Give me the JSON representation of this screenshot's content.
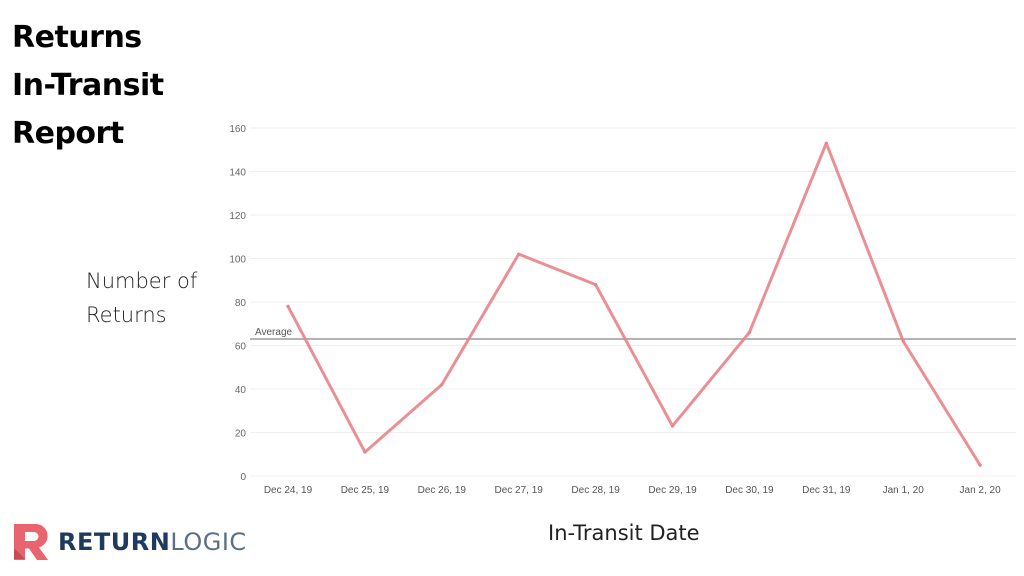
{
  "title_lines": [
    "Returns",
    "In-Transit",
    "Report"
  ],
  "brand": {
    "part1": "RETURN",
    "part2": "LOGIC",
    "colors": {
      "dark": "#1f3a5c",
      "accent": "#e8646e",
      "light": "#5d6f87"
    }
  },
  "chart_data": {
    "type": "line",
    "title": "",
    "xlabel": "In-Transit Date",
    "ylabel_lines": [
      "Number of",
      "Returns"
    ],
    "categories": [
      "Dec 24, 19",
      "Dec 25, 19",
      "Dec 26, 19",
      "Dec 27, 19",
      "Dec 28, 19",
      "Dec 29, 19",
      "Dec 30, 19",
      "Dec 31, 19",
      "Jan 1, 20",
      "Jan 2, 20"
    ],
    "values": [
      78,
      11,
      42,
      102,
      88,
      23,
      66,
      153,
      62,
      5
    ],
    "ylim": [
      0,
      160
    ],
    "yticks": [
      0,
      20,
      40,
      60,
      80,
      100,
      120,
      140,
      160
    ],
    "reference_line": {
      "label": "Average",
      "value": 63
    },
    "line_color": "#e8848a",
    "grid": true
  }
}
